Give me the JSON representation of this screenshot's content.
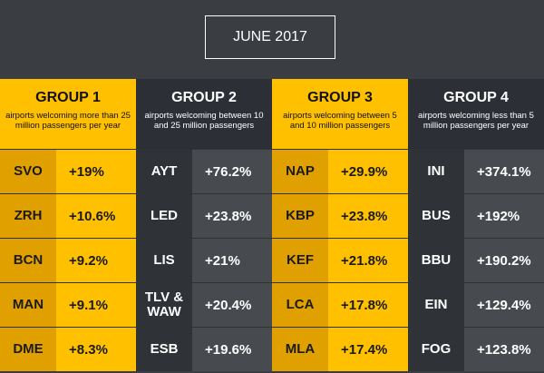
{
  "title": "JUNE 2017",
  "colors": {
    "yellow": "#ffc000",
    "dark_yellow": "#e0a100",
    "dark": "#2c3036",
    "gray": "#474b50",
    "background": "#3a3e43"
  },
  "chart_data": {
    "type": "table",
    "title": "JUNE 2017",
    "groups": [
      {
        "name": "GROUP 1",
        "description": "airports welcoming more than 25 million passengers per year",
        "rows": [
          {
            "code": "SVO",
            "value": "+19%"
          },
          {
            "code": "ZRH",
            "value": "+10.6%"
          },
          {
            "code": "BCN",
            "value": "+9.2%"
          },
          {
            "code": "MAN",
            "value": "+9.1%"
          },
          {
            "code": "DME",
            "value": "+8.3%"
          }
        ]
      },
      {
        "name": "GROUP 2",
        "description": "airports welcoming between 10 and 25 million passengers",
        "rows": [
          {
            "code": "AYT",
            "value": "+76.2%"
          },
          {
            "code": "LED",
            "value": "+23.8%"
          },
          {
            "code": "LIS",
            "value": "+21%"
          },
          {
            "code": "TLV & WAW",
            "value": "+20.4%"
          },
          {
            "code": "ESB",
            "value": "+19.6%"
          }
        ]
      },
      {
        "name": "GROUP 3",
        "description": "airports welcoming between 5 and 10 million passengers",
        "rows": [
          {
            "code": "NAP",
            "value": "+29.9%"
          },
          {
            "code": "KBP",
            "value": "+23.8%"
          },
          {
            "code": "KEF",
            "value": "+21.8%"
          },
          {
            "code": "LCA",
            "value": "+17.8%"
          },
          {
            "code": "MLA",
            "value": "+17.4%"
          }
        ]
      },
      {
        "name": "GROUP 4",
        "description": "airports welcoming less than 5 million passengers per year",
        "rows": [
          {
            "code": "INI",
            "value": "+374.1%"
          },
          {
            "code": "BUS",
            "value": "+192%"
          },
          {
            "code": "BBU",
            "value": "+190.2%"
          },
          {
            "code": "EIN",
            "value": "+129.4%"
          },
          {
            "code": "FOG",
            "value": "+123.8%"
          }
        ]
      }
    ]
  }
}
